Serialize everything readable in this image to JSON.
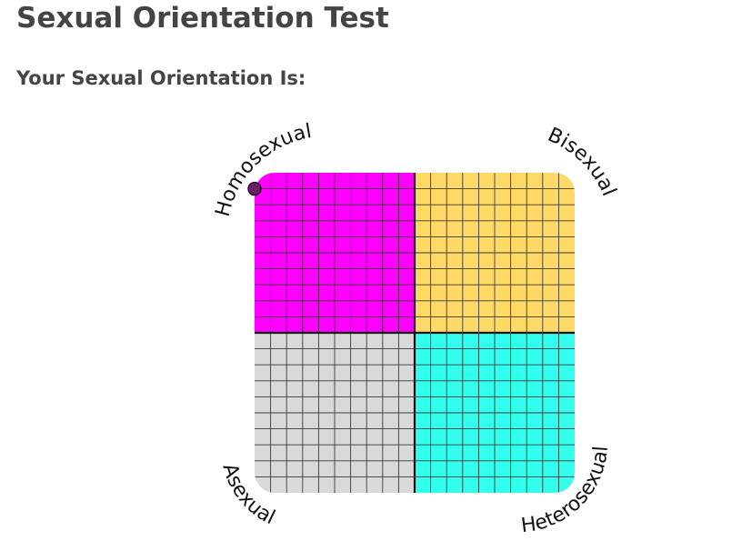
{
  "header": {
    "title": "Sexual Orientation Test",
    "subtitle": "Your Sexual Orientation Is:"
  },
  "chart_data": {
    "type": "quadrant-grid",
    "quadrants": [
      {
        "id": "top-left",
        "label": "Homosexual",
        "color": "#ff00ff"
      },
      {
        "id": "top-right",
        "label": "Bisexual",
        "color": "#ffd966"
      },
      {
        "id": "bottom-left",
        "label": "Asexual",
        "color": "#d9d9d9"
      },
      {
        "id": "bottom-right",
        "label": "Heterosexual",
        "color": "#33ffee"
      }
    ],
    "grid_cells_per_side": 20,
    "marker": {
      "x": 0.0,
      "y": 0.95,
      "color": "#6a1f66"
    }
  }
}
